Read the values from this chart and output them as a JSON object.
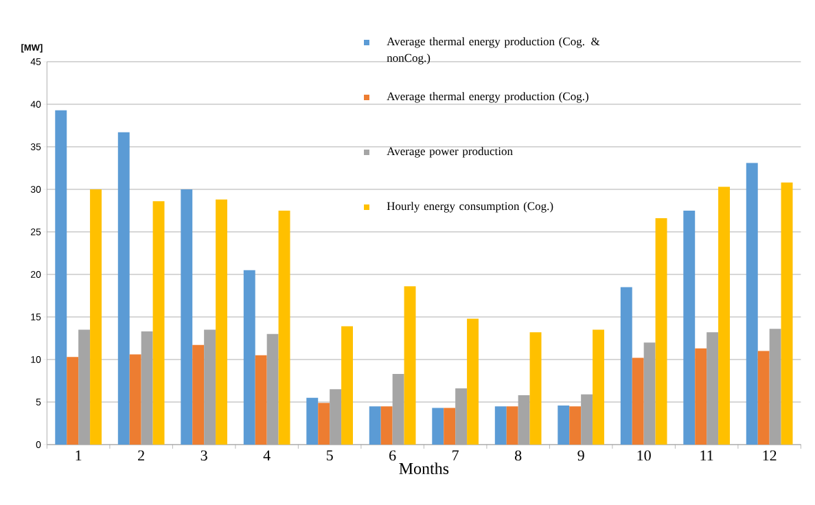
{
  "chart_data": {
    "type": "bar",
    "xlabel": "Months",
    "ylabel": "[MW]",
    "categories": [
      "1",
      "2",
      "3",
      "4",
      "5",
      "6",
      "7",
      "8",
      "9",
      "10",
      "11",
      "12"
    ],
    "series": [
      {
        "name": "Average thermal energy production (Cog. & nonCog.)",
        "color": "#5b9bd5",
        "values": [
          39.3,
          36.7,
          30.0,
          20.5,
          5.5,
          4.5,
          4.3,
          4.5,
          4.6,
          18.5,
          27.5,
          33.1
        ]
      },
      {
        "name": "Average thermal energy production (Cog.)",
        "color": "#ed7d31",
        "values": [
          10.3,
          10.6,
          11.7,
          10.5,
          4.9,
          4.5,
          4.3,
          4.5,
          4.5,
          10.2,
          11.3,
          11.0
        ]
      },
      {
        "name": "Average power production",
        "color": "#a5a5a5",
        "values": [
          13.5,
          13.3,
          13.5,
          13.0,
          6.5,
          8.3,
          6.6,
          5.8,
          5.9,
          12.0,
          13.2,
          13.6
        ]
      },
      {
        "name": "Hourly energy consumption (Cog.)",
        "color": "#ffc000",
        "values": [
          30.0,
          28.6,
          28.8,
          27.5,
          13.9,
          18.6,
          14.8,
          13.2,
          13.5,
          26.6,
          30.3,
          30.8
        ]
      }
    ],
    "ylim": [
      0,
      45
    ],
    "yticks": [
      0,
      5,
      10,
      15,
      20,
      25,
      30,
      35,
      40,
      45
    ],
    "grid": "y",
    "legend": "top"
  }
}
